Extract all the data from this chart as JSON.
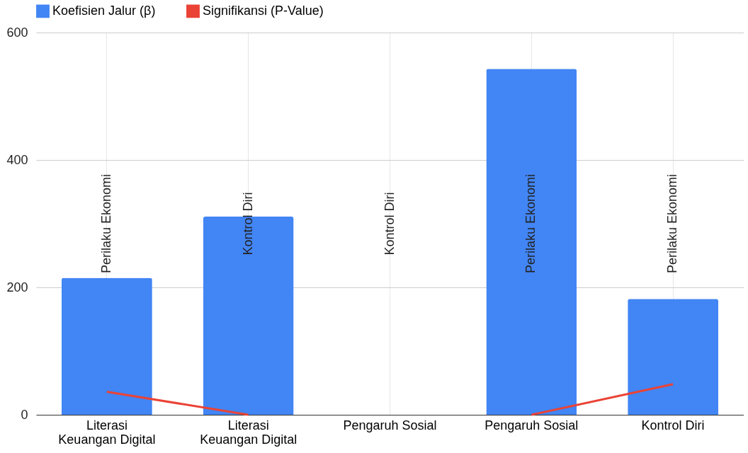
{
  "chart_data": {
    "type": "bar",
    "categories": [
      "Literasi Keuangan Digital",
      "Literasi Keuangan Digital",
      "Pengaruh Sosial",
      "Pengaruh Sosial",
      "Kontrol Diri"
    ],
    "series": [
      {
        "name": "Koefisien Jalur (β)",
        "color": "#4285f4",
        "values": [
          215,
          311,
          null,
          543,
          182
        ]
      },
      {
        "name": "Signifikansi (P-Value)",
        "type": "line",
        "color": "#ea4335",
        "values": [
          36,
          0,
          null,
          0,
          48
        ]
      }
    ],
    "annotations": [
      "Perilaku Ekonomi",
      "Kontrol Diri",
      "Kontrol Diri",
      "Perilaku Ekonomi",
      "Perilaku Ekonomi"
    ],
    "ylim": [
      0,
      600
    ],
    "yticks": [
      0,
      200,
      400,
      600
    ],
    "grid": true,
    "legend": "top"
  }
}
